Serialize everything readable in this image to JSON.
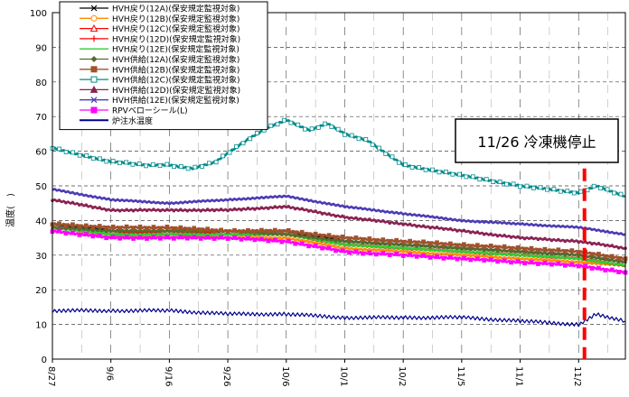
{
  "chart_data": {
    "type": "line",
    "ylabel": "温度(　)",
    "ylim": [
      0,
      100
    ],
    "y_ticks": [
      0,
      10,
      20,
      30,
      40,
      50,
      60,
      70,
      80,
      90,
      100
    ],
    "x_ticks": [
      "8/27",
      "9/6",
      "9/16",
      "9/26",
      "10/6",
      "10/1",
      "10/2",
      "11/5",
      "11/1",
      "11/2"
    ],
    "x_range": [
      "8/27",
      "12/3"
    ],
    "grid": "dashed",
    "legend_position": "top-left",
    "annotation": {
      "text": "11/26 冷凍機停止",
      "date": "11/26"
    },
    "series": [
      {
        "name": "HVH戻り(12A)(保安規定監視対象)",
        "color": "#000000",
        "marker": "x",
        "x": [
          "8/27",
          "9/6",
          "9/16",
          "9/26",
          "10/6",
          "10/16",
          "10/26",
          "11/5",
          "11/15",
          "11/25",
          "12/3"
        ],
        "values": [
          39,
          37,
          37,
          37,
          37,
          34,
          33,
          32,
          31,
          30,
          28
        ]
      },
      {
        "name": "HVH戻り(12B)(保安規定監視対象)",
        "color": "#ff8c00",
        "marker": "o",
        "x": [
          "8/27",
          "9/6",
          "9/16",
          "9/26",
          "10/6",
          "10/16",
          "10/26",
          "11/5",
          "11/15",
          "11/25",
          "12/3"
        ],
        "values": [
          37,
          35,
          36,
          35,
          35,
          32,
          31,
          30,
          29,
          28,
          27
        ]
      },
      {
        "name": "HVH戻り(12C)(保安規定監視対象)",
        "color": "#ff0000",
        "marker": "^",
        "x": [
          "8/27",
          "9/6",
          "9/16",
          "9/26",
          "10/6",
          "10/16",
          "10/26",
          "11/5",
          "11/15",
          "11/25",
          "12/3"
        ],
        "values": [
          38,
          36,
          36,
          36,
          36,
          33,
          32,
          31,
          30,
          29,
          27
        ]
      },
      {
        "name": "HVH戻り(12D)(保安規定監視対象)",
        "color": "#ff0000",
        "marker": "+",
        "x": [
          "8/27",
          "9/6",
          "9/16",
          "9/26",
          "10/6",
          "10/16",
          "10/26",
          "11/5",
          "11/15",
          "11/25",
          "12/3"
        ],
        "values": [
          38,
          36,
          37,
          36,
          36,
          33,
          32,
          31,
          30,
          29,
          27
        ]
      },
      {
        "name": "HVH戻り(12E)(保安規定監視対象)",
        "color": "#33cc33",
        "marker": "-",
        "x": [
          "8/27",
          "9/6",
          "9/16",
          "9/26",
          "10/6",
          "10/16",
          "10/26",
          "11/5",
          "11/15",
          "11/25",
          "12/3"
        ],
        "values": [
          38,
          36,
          36,
          36,
          36,
          33,
          32,
          31,
          30,
          29,
          27
        ]
      },
      {
        "name": "HVH供給(12A)(保安規定監視対象)",
        "color": "#556b2f",
        "marker": "diamond",
        "x": [
          "8/27",
          "9/6",
          "9/16",
          "9/26",
          "10/6",
          "10/16",
          "10/26",
          "11/5",
          "11/15",
          "11/25",
          "12/3"
        ],
        "values": [
          38,
          37,
          37,
          37,
          36,
          34,
          33,
          32,
          31,
          30,
          28
        ]
      },
      {
        "name": "HVH供給(12B)(保安規定監視対象)",
        "color": "#a0522d",
        "marker": "square",
        "x": [
          "8/27",
          "9/6",
          "9/16",
          "9/26",
          "10/6",
          "10/16",
          "10/26",
          "11/5",
          "11/15",
          "11/25",
          "12/3"
        ],
        "values": [
          39,
          38,
          38,
          37,
          37,
          35,
          34,
          33,
          32,
          31,
          29
        ]
      },
      {
        "name": "HVH供給(12C)(保安規定監視対象)",
        "color": "#008b8b",
        "marker": "square-open",
        "x": [
          "8/27",
          "9/3",
          "9/6",
          "9/12",
          "9/16",
          "9/20",
          "9/24",
          "9/29",
          "10/3",
          "10/6",
          "10/10",
          "10/13",
          "10/16",
          "10/20",
          "10/26",
          "11/5",
          "11/15",
          "11/25",
          "11/28",
          "12/3"
        ],
        "values": [
          61,
          58,
          57,
          56,
          56,
          55,
          57,
          63,
          67,
          69,
          66,
          68,
          65,
          63,
          56,
          53,
          50,
          48,
          50,
          47
        ]
      },
      {
        "name": "HVH供給(12D)(保安規定監視対象)",
        "color": "#8b2252",
        "marker": "triangle",
        "x": [
          "8/27",
          "9/6",
          "9/16",
          "9/26",
          "10/6",
          "10/16",
          "10/26",
          "11/5",
          "11/15",
          "11/25",
          "12/3"
        ],
        "values": [
          46,
          43,
          43,
          43,
          44,
          41,
          39,
          37,
          35,
          34,
          32
        ]
      },
      {
        "name": "HVH供給(12E)(保安規定監視対象)",
        "color": "#4b3cb4",
        "marker": "x",
        "x": [
          "8/27",
          "9/6",
          "9/16",
          "9/26",
          "10/6",
          "10/16",
          "10/26",
          "11/5",
          "11/15",
          "11/25",
          "12/3"
        ],
        "values": [
          49,
          46,
          45,
          46,
          47,
          44,
          42,
          40,
          39,
          38,
          36
        ]
      },
      {
        "name": "RPVベローシール(L)",
        "color": "#ff00ff",
        "marker": "square",
        "x": [
          "8/27",
          "9/6",
          "9/16",
          "9/26",
          "10/6",
          "10/16",
          "10/26",
          "11/5",
          "11/15",
          "11/25",
          "12/3"
        ],
        "values": [
          37,
          35,
          35,
          35,
          34,
          31,
          30,
          29,
          28,
          27,
          25
        ]
      },
      {
        "name": "炉注水温度",
        "color": "#00008b",
        "marker": "none",
        "x": [
          "8/27",
          "9/6",
          "9/16",
          "9/26",
          "10/6",
          "10/16",
          "10/26",
          "11/5",
          "11/15",
          "11/25",
          "11/28",
          "12/3"
        ],
        "values": [
          14,
          14,
          14,
          13,
          13,
          12,
          12,
          12,
          11,
          10,
          13,
          11
        ]
      }
    ]
  }
}
